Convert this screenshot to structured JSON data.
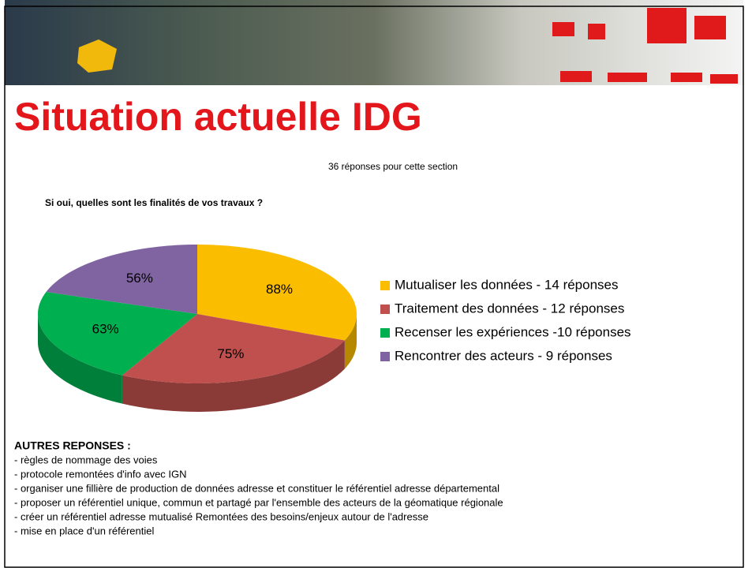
{
  "page_title": "Situation actuelle IDG",
  "chart_data": {
    "type": "pie",
    "subtitle": "36 réponses pour cette section",
    "title": "Si oui, quelles sont les finalités de vos travaux ?",
    "categories": [
      "Mutualiser les données - 14 réponses",
      "Traitement des données - 12 réponses",
      "Recenser les expériences -10 réponses",
      "Rencontrer des acteurs - 9 réponses"
    ],
    "values": [
      88,
      75,
      63,
      56
    ],
    "value_labels": [
      "88%",
      "75%",
      "63%",
      "56%"
    ],
    "colors": [
      "#fbbd00",
      "#c0504d",
      "#00b050",
      "#8064a2"
    ],
    "legend": "right"
  },
  "other_answers": {
    "heading": "AUTRES REPONSES :",
    "items": [
      "- règles de nommage des voies",
      "- protocole remontées d'info avec IGN",
      "- organiser une fillière de production de données adresse et constituer le référentiel adresse départemental",
      "- proposer un référentiel unique, commun et partagé par l'ensemble des acteurs de la géomatique régionale",
      "- créer un référentiel adresse mutualisé  Remontées des besoins/enjeux autour de l'adresse",
      "- mise en place d'un référentiel"
    ]
  }
}
